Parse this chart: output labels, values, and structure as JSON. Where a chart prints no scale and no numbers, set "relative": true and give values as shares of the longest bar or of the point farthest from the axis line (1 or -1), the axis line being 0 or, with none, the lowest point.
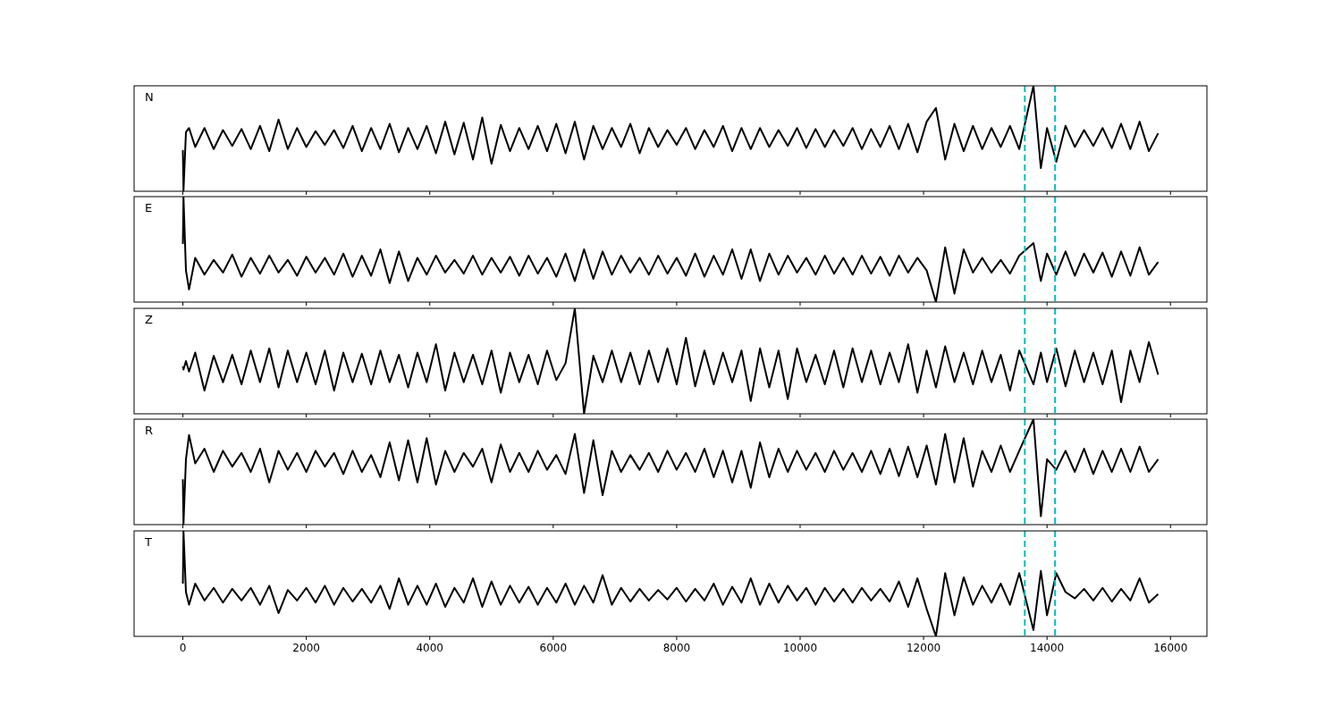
{
  "chart_data": [
    {
      "type": "line",
      "title": "N",
      "relative": true,
      "tick_labels": false,
      "xlim": [
        -790,
        16590
      ],
      "xticks": [
        0,
        2000,
        4000,
        6000,
        8000,
        10000,
        12000,
        14000,
        16000
      ],
      "x": [
        0,
        10,
        50,
        100,
        200,
        350,
        500,
        650,
        800,
        950,
        1100,
        1250,
        1400,
        1550,
        1700,
        1850,
        2000,
        2150,
        2300,
        2450,
        2600,
        2750,
        2900,
        3050,
        3200,
        3350,
        3500,
        3650,
        3800,
        3950,
        4100,
        4250,
        4400,
        4550,
        4700,
        4850,
        5000,
        5150,
        5300,
        5450,
        5600,
        5750,
        5900,
        6050,
        6200,
        6350,
        6500,
        6650,
        6800,
        6950,
        7100,
        7250,
        7400,
        7550,
        7700,
        7850,
        8000,
        8150,
        8300,
        8450,
        8600,
        8750,
        8900,
        9050,
        9200,
        9350,
        9500,
        9650,
        9800,
        9950,
        10100,
        10250,
        10400,
        10550,
        10700,
        10850,
        11000,
        11150,
        11300,
        11450,
        11600,
        11750,
        11900,
        12050,
        12200,
        12350,
        12500,
        12650,
        12800,
        12950,
        13100,
        13250,
        13400,
        13550,
        13780,
        13900,
        14000,
        14150,
        14300,
        14450,
        14600,
        14750,
        14900,
        15050,
        15200,
        15350,
        15500,
        15650,
        15800
      ],
      "series": [
        {
          "color": "#000000",
          "values": [
            0.39,
            0.0,
            0.56,
            0.6,
            0.42,
            0.6,
            0.4,
            0.58,
            0.43,
            0.59,
            0.4,
            0.62,
            0.38,
            0.68,
            0.4,
            0.6,
            0.42,
            0.57,
            0.44,
            0.58,
            0.41,
            0.62,
            0.38,
            0.6,
            0.4,
            0.64,
            0.37,
            0.6,
            0.4,
            0.62,
            0.36,
            0.66,
            0.35,
            0.65,
            0.3,
            0.7,
            0.26,
            0.63,
            0.38,
            0.6,
            0.4,
            0.62,
            0.38,
            0.64,
            0.36,
            0.66,
            0.3,
            0.62,
            0.4,
            0.6,
            0.42,
            0.64,
            0.36,
            0.6,
            0.42,
            0.58,
            0.44,
            0.6,
            0.4,
            0.58,
            0.42,
            0.62,
            0.38,
            0.6,
            0.4,
            0.6,
            0.42,
            0.58,
            0.43,
            0.6,
            0.41,
            0.59,
            0.42,
            0.58,
            0.43,
            0.6,
            0.4,
            0.59,
            0.42,
            0.62,
            0.4,
            0.64,
            0.37,
            0.66,
            0.79,
            0.3,
            0.64,
            0.38,
            0.62,
            0.4,
            0.6,
            0.42,
            0.62,
            0.4,
            1.0,
            0.22,
            0.6,
            0.28,
            0.62,
            0.42,
            0.58,
            0.43,
            0.6,
            0.41,
            0.64,
            0.4,
            0.66,
            0.38,
            0.55
          ]
        }
      ],
      "ref_lines": [
        {
          "axis": "x",
          "value": 13640,
          "color": "#00bfbf",
          "line_style": "dashed"
        },
        {
          "axis": "x",
          "value": 14130,
          "color": "#00bfbf",
          "line_style": "dashed"
        }
      ]
    },
    {
      "type": "line",
      "title": "E",
      "relative": true,
      "tick_labels": false,
      "xlim": [
        -790,
        16590
      ],
      "xticks": [
        0,
        2000,
        4000,
        6000,
        8000,
        10000,
        12000,
        14000,
        16000
      ],
      "x": [
        0,
        10,
        50,
        100,
        200,
        350,
        500,
        650,
        800,
        950,
        1100,
        1250,
        1400,
        1550,
        1700,
        1850,
        2000,
        2150,
        2300,
        2450,
        2600,
        2750,
        2900,
        3050,
        3200,
        3350,
        3500,
        3650,
        3800,
        3950,
        4100,
        4250,
        4400,
        4550,
        4700,
        4850,
        5000,
        5150,
        5300,
        5450,
        5600,
        5750,
        5900,
        6050,
        6200,
        6350,
        6500,
        6650,
        6800,
        6950,
        7100,
        7250,
        7400,
        7550,
        7700,
        7850,
        8000,
        8150,
        8300,
        8450,
        8600,
        8750,
        8900,
        9050,
        9200,
        9350,
        9500,
        9650,
        9800,
        9950,
        10100,
        10250,
        10400,
        10550,
        10700,
        10850,
        11000,
        11150,
        11300,
        11450,
        11600,
        11750,
        11900,
        12050,
        12200,
        12350,
        12500,
        12650,
        12800,
        12950,
        13100,
        13250,
        13400,
        13550,
        13780,
        13900,
        14000,
        14150,
        14300,
        14450,
        14600,
        14750,
        14900,
        15050,
        15200,
        15350,
        15500,
        15650,
        15800
      ],
      "series": [
        {
          "color": "#000000",
          "values": [
            0.55,
            1.0,
            0.3,
            0.12,
            0.42,
            0.26,
            0.4,
            0.28,
            0.45,
            0.24,
            0.42,
            0.27,
            0.44,
            0.28,
            0.4,
            0.25,
            0.43,
            0.28,
            0.42,
            0.26,
            0.46,
            0.24,
            0.44,
            0.25,
            0.5,
            0.18,
            0.48,
            0.2,
            0.42,
            0.26,
            0.44,
            0.28,
            0.4,
            0.27,
            0.44,
            0.26,
            0.42,
            0.28,
            0.43,
            0.25,
            0.44,
            0.27,
            0.42,
            0.24,
            0.46,
            0.2,
            0.5,
            0.22,
            0.48,
            0.26,
            0.44,
            0.28,
            0.42,
            0.26,
            0.44,
            0.27,
            0.42,
            0.25,
            0.46,
            0.24,
            0.44,
            0.26,
            0.5,
            0.22,
            0.5,
            0.2,
            0.46,
            0.26,
            0.44,
            0.28,
            0.42,
            0.26,
            0.44,
            0.27,
            0.42,
            0.26,
            0.44,
            0.27,
            0.43,
            0.25,
            0.44,
            0.28,
            0.42,
            0.3,
            0.0,
            0.52,
            0.08,
            0.5,
            0.28,
            0.42,
            0.28,
            0.4,
            0.27,
            0.44,
            0.56,
            0.2,
            0.46,
            0.26,
            0.48,
            0.25,
            0.46,
            0.28,
            0.47,
            0.24,
            0.48,
            0.25,
            0.52,
            0.26,
            0.38
          ]
        }
      ],
      "ref_lines": [
        {
          "axis": "x",
          "value": 13640,
          "color": "#00bfbf",
          "line_style": "dashed"
        },
        {
          "axis": "x",
          "value": 14130,
          "color": "#00bfbf",
          "line_style": "dashed"
        }
      ]
    },
    {
      "type": "line",
      "title": "Z",
      "relative": true,
      "tick_labels": false,
      "xlim": [
        -790,
        16590
      ],
      "xticks": [
        0,
        2000,
        4000,
        6000,
        8000,
        10000,
        12000,
        14000,
        16000
      ],
      "x": [
        0,
        10,
        50,
        100,
        200,
        350,
        500,
        650,
        800,
        950,
        1100,
        1250,
        1400,
        1550,
        1700,
        1850,
        2000,
        2150,
        2300,
        2450,
        2600,
        2750,
        2900,
        3050,
        3200,
        3350,
        3500,
        3650,
        3800,
        3950,
        4100,
        4250,
        4400,
        4550,
        4700,
        4850,
        5000,
        5150,
        5300,
        5450,
        5600,
        5750,
        5900,
        6050,
        6200,
        6350,
        6500,
        6650,
        6800,
        6950,
        7100,
        7250,
        7400,
        7550,
        7700,
        7850,
        8000,
        8150,
        8300,
        8450,
        8600,
        8750,
        8900,
        9050,
        9200,
        9350,
        9500,
        9650,
        9800,
        9950,
        10100,
        10250,
        10400,
        10550,
        10700,
        10850,
        11000,
        11150,
        11300,
        11450,
        11600,
        11750,
        11900,
        12050,
        12200,
        12350,
        12500,
        12650,
        12800,
        12950,
        13100,
        13250,
        13400,
        13550,
        13780,
        13900,
        14000,
        14150,
        14300,
        14450,
        14600,
        14750,
        14900,
        15050,
        15200,
        15350,
        15500,
        15650,
        15800
      ],
      "series": [
        {
          "color": "#000000",
          "values": [
            0.45,
            0.42,
            0.5,
            0.4,
            0.58,
            0.22,
            0.55,
            0.3,
            0.56,
            0.28,
            0.6,
            0.3,
            0.62,
            0.25,
            0.6,
            0.3,
            0.58,
            0.28,
            0.6,
            0.22,
            0.58,
            0.3,
            0.57,
            0.28,
            0.6,
            0.3,
            0.56,
            0.25,
            0.58,
            0.3,
            0.66,
            0.22,
            0.58,
            0.3,
            0.56,
            0.28,
            0.6,
            0.2,
            0.58,
            0.3,
            0.56,
            0.28,
            0.6,
            0.32,
            0.48,
            1.0,
            0.0,
            0.55,
            0.3,
            0.6,
            0.3,
            0.58,
            0.28,
            0.6,
            0.3,
            0.62,
            0.28,
            0.72,
            0.26,
            0.6,
            0.28,
            0.58,
            0.3,
            0.6,
            0.12,
            0.62,
            0.25,
            0.6,
            0.14,
            0.62,
            0.3,
            0.56,
            0.28,
            0.6,
            0.25,
            0.62,
            0.3,
            0.6,
            0.28,
            0.58,
            0.3,
            0.66,
            0.2,
            0.6,
            0.25,
            0.64,
            0.3,
            0.58,
            0.28,
            0.6,
            0.3,
            0.56,
            0.22,
            0.6,
            0.28,
            0.58,
            0.3,
            0.62,
            0.26,
            0.6,
            0.3,
            0.58,
            0.28,
            0.6,
            0.11,
            0.6,
            0.3,
            0.68,
            0.37
          ]
        }
      ],
      "ref_lines": [
        {
          "axis": "x",
          "value": 13640,
          "color": "#00bfbf",
          "line_style": "dashed"
        },
        {
          "axis": "x",
          "value": 14130,
          "color": "#00bfbf",
          "line_style": "dashed"
        }
      ]
    },
    {
      "type": "line",
      "title": "R",
      "relative": true,
      "tick_labels": false,
      "xlim": [
        -790,
        16590
      ],
      "xticks": [
        0,
        2000,
        4000,
        6000,
        8000,
        10000,
        12000,
        14000,
        16000
      ],
      "x": [
        0,
        10,
        50,
        100,
        200,
        350,
        500,
        650,
        800,
        950,
        1100,
        1250,
        1400,
        1550,
        1700,
        1850,
        2000,
        2150,
        2300,
        2450,
        2600,
        2750,
        2900,
        3050,
        3200,
        3350,
        3500,
        3650,
        3800,
        3950,
        4100,
        4250,
        4400,
        4550,
        4700,
        4850,
        5000,
        5150,
        5300,
        5450,
        5600,
        5750,
        5900,
        6050,
        6200,
        6350,
        6500,
        6650,
        6800,
        6950,
        7100,
        7250,
        7400,
        7550,
        7700,
        7850,
        8000,
        8150,
        8300,
        8450,
        8600,
        8750,
        8900,
        9050,
        9200,
        9350,
        9500,
        9650,
        9800,
        9950,
        10100,
        10250,
        10400,
        10550,
        10700,
        10850,
        11000,
        11150,
        11300,
        11450,
        11600,
        11750,
        11900,
        12050,
        12200,
        12350,
        12500,
        12650,
        12800,
        12950,
        13100,
        13250,
        13400,
        13550,
        13780,
        13900,
        14000,
        14150,
        14300,
        14450,
        14600,
        14750,
        14900,
        15050,
        15200,
        15350,
        15500,
        15650,
        15800
      ],
      "series": [
        {
          "color": "#000000",
          "values": [
            0.43,
            0.0,
            0.62,
            0.85,
            0.58,
            0.72,
            0.5,
            0.7,
            0.55,
            0.68,
            0.5,
            0.72,
            0.4,
            0.7,
            0.52,
            0.68,
            0.5,
            0.7,
            0.55,
            0.68,
            0.48,
            0.7,
            0.5,
            0.66,
            0.45,
            0.78,
            0.42,
            0.8,
            0.4,
            0.82,
            0.38,
            0.7,
            0.5,
            0.68,
            0.55,
            0.72,
            0.4,
            0.76,
            0.5,
            0.68,
            0.5,
            0.7,
            0.52,
            0.66,
            0.48,
            0.86,
            0.3,
            0.8,
            0.28,
            0.7,
            0.5,
            0.66,
            0.52,
            0.68,
            0.5,
            0.7,
            0.52,
            0.68,
            0.5,
            0.72,
            0.45,
            0.7,
            0.4,
            0.7,
            0.35,
            0.78,
            0.45,
            0.72,
            0.5,
            0.7,
            0.52,
            0.68,
            0.5,
            0.7,
            0.52,
            0.68,
            0.5,
            0.7,
            0.48,
            0.72,
            0.46,
            0.74,
            0.45,
            0.75,
            0.38,
            0.86,
            0.4,
            0.82,
            0.36,
            0.7,
            0.5,
            0.75,
            0.5,
            0.7,
            1.0,
            0.08,
            0.62,
            0.52,
            0.7,
            0.5,
            0.72,
            0.48,
            0.7,
            0.5,
            0.72,
            0.5,
            0.74,
            0.5,
            0.62
          ]
        }
      ],
      "ref_lines": [
        {
          "axis": "x",
          "value": 13640,
          "color": "#00bfbf",
          "line_style": "dashed"
        },
        {
          "axis": "x",
          "value": 14130,
          "color": "#00bfbf",
          "line_style": "dashed"
        }
      ]
    },
    {
      "type": "line",
      "title": "T",
      "relative": true,
      "tick_labels": "x",
      "xlim": [
        -790,
        16590
      ],
      "xticks": [
        0,
        2000,
        4000,
        6000,
        8000,
        10000,
        12000,
        14000,
        16000
      ],
      "x": [
        0,
        10,
        50,
        100,
        200,
        350,
        500,
        650,
        800,
        950,
        1100,
        1250,
        1400,
        1550,
        1700,
        1850,
        2000,
        2150,
        2300,
        2450,
        2600,
        2750,
        2900,
        3050,
        3200,
        3350,
        3500,
        3650,
        3800,
        3950,
        4100,
        4250,
        4400,
        4550,
        4700,
        4850,
        5000,
        5150,
        5300,
        5450,
        5600,
        5750,
        5900,
        6050,
        6200,
        6350,
        6500,
        6650,
        6800,
        6950,
        7100,
        7250,
        7400,
        7550,
        7700,
        7850,
        8000,
        8150,
        8300,
        8450,
        8600,
        8750,
        8900,
        9050,
        9200,
        9350,
        9500,
        9650,
        9800,
        9950,
        10100,
        10250,
        10400,
        10550,
        10700,
        10850,
        11000,
        11150,
        11300,
        11450,
        11600,
        11750,
        11900,
        12050,
        12200,
        12350,
        12500,
        12650,
        12800,
        12950,
        13100,
        13250,
        13400,
        13550,
        13780,
        13900,
        14000,
        14150,
        14300,
        14450,
        14600,
        14750,
        14900,
        15050,
        15200,
        15350,
        15500,
        15650,
        15800
      ],
      "series": [
        {
          "color": "#000000",
          "values": [
            0.5,
            1.0,
            0.42,
            0.3,
            0.5,
            0.34,
            0.46,
            0.32,
            0.45,
            0.34,
            0.46,
            0.3,
            0.48,
            0.22,
            0.44,
            0.34,
            0.46,
            0.32,
            0.48,
            0.3,
            0.46,
            0.33,
            0.45,
            0.32,
            0.48,
            0.26,
            0.55,
            0.3,
            0.48,
            0.3,
            0.5,
            0.28,
            0.46,
            0.32,
            0.55,
            0.28,
            0.52,
            0.3,
            0.48,
            0.32,
            0.47,
            0.3,
            0.46,
            0.32,
            0.5,
            0.3,
            0.48,
            0.32,
            0.58,
            0.3,
            0.46,
            0.33,
            0.45,
            0.34,
            0.44,
            0.35,
            0.46,
            0.33,
            0.45,
            0.34,
            0.5,
            0.3,
            0.47,
            0.32,
            0.55,
            0.3,
            0.5,
            0.32,
            0.48,
            0.34,
            0.46,
            0.3,
            0.46,
            0.33,
            0.45,
            0.32,
            0.46,
            0.34,
            0.45,
            0.33,
            0.52,
            0.28,
            0.55,
            0.26,
            0.0,
            0.6,
            0.2,
            0.56,
            0.3,
            0.48,
            0.32,
            0.5,
            0.3,
            0.6,
            0.06,
            0.62,
            0.2,
            0.6,
            0.42,
            0.36,
            0.45,
            0.34,
            0.46,
            0.33,
            0.45,
            0.34,
            0.55,
            0.32,
            0.4
          ]
        }
      ],
      "ref_lines": [
        {
          "axis": "x",
          "value": 13640,
          "color": "#00bfbf",
          "line_style": "dashed"
        },
        {
          "axis": "x",
          "value": 14130,
          "color": "#00bfbf",
          "line_style": "dashed"
        }
      ]
    }
  ]
}
